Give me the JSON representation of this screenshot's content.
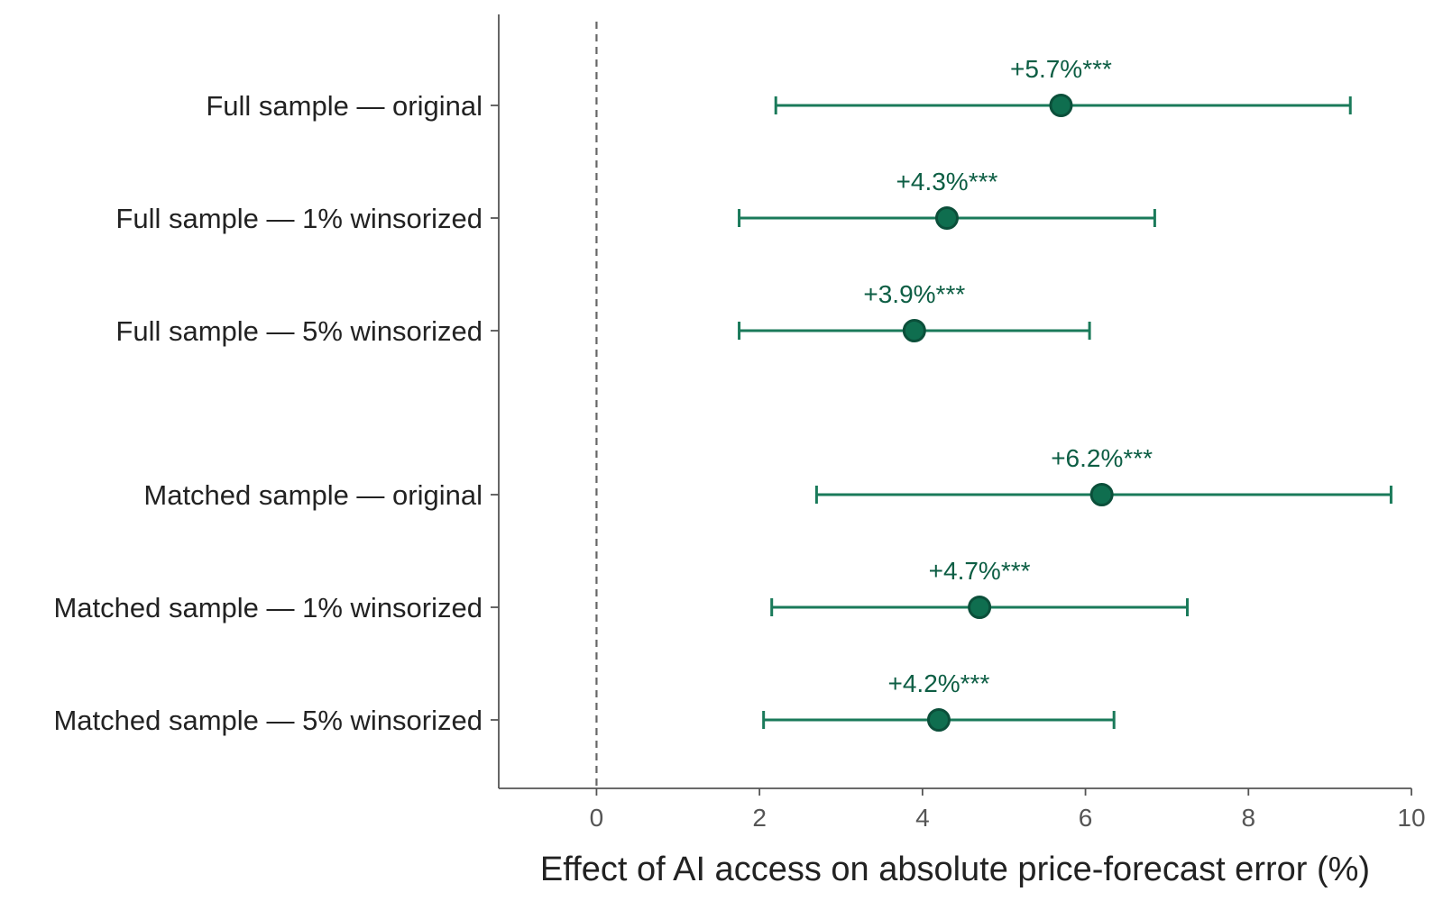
{
  "chart_data": {
    "type": "forest",
    "title": "",
    "xlabel": "Effect of AI access on absolute price-forecast error (%)",
    "ylabel": "",
    "xlim": [
      -1.2,
      10
    ],
    "xticks": [
      0,
      2,
      4,
      6,
      8,
      10
    ],
    "xtick_labels": [
      "0",
      "2",
      "4",
      "6",
      "8",
      "10"
    ],
    "reference_line": {
      "x": 0,
      "style": "dashed",
      "color": "#666666"
    },
    "grid": false,
    "legend": "none",
    "colors": {
      "marker_fill": "#0f6e4f",
      "marker_edge": "#0b4f3a",
      "errorbar": "#1a7a5a",
      "label_text": "#0d5e44"
    },
    "rows": [
      {
        "label": "Full sample — original",
        "estimate": 5.7,
        "ci_low": 2.2,
        "ci_high": 9.25,
        "annotation": "+5.7%***",
        "group": 1
      },
      {
        "label": "Full sample — 1% winsorized",
        "estimate": 4.3,
        "ci_low": 1.75,
        "ci_high": 6.85,
        "annotation": "+4.3%***",
        "group": 1
      },
      {
        "label": "Full sample — 5% winsorized",
        "estimate": 3.9,
        "ci_low": 1.75,
        "ci_high": 6.05,
        "annotation": "+3.9%***",
        "group": 1
      },
      {
        "label": "Matched sample — original",
        "estimate": 6.2,
        "ci_low": 2.7,
        "ci_high": 9.75,
        "annotation": "+6.2%***",
        "group": 2
      },
      {
        "label": "Matched sample — 1% winsorized",
        "estimate": 4.7,
        "ci_low": 2.15,
        "ci_high": 7.25,
        "annotation": "+4.7%***",
        "group": 2
      },
      {
        "label": "Matched sample — 5% winsorized",
        "estimate": 4.2,
        "ci_low": 2.05,
        "ci_high": 6.35,
        "annotation": "+4.2%***",
        "group": 2
      }
    ]
  }
}
